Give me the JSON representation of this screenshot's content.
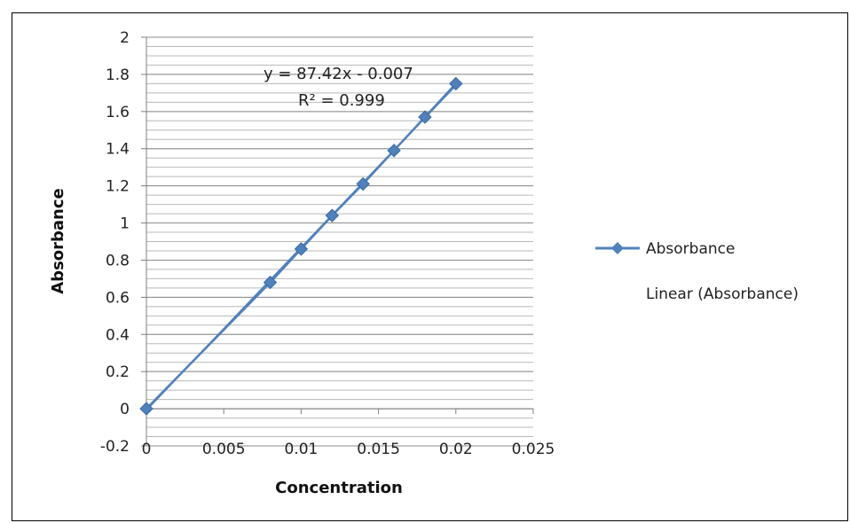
{
  "chart_data": {
    "type": "scatter",
    "title": "",
    "xlabel": "Concentration",
    "ylabel": "Absorbance",
    "xlim": [
      0,
      0.025
    ],
    "ylim": [
      -0.2,
      2
    ],
    "x_ticks": [
      0,
      0.005,
      0.01,
      0.015,
      0.02,
      0.025
    ],
    "x_tick_labels": [
      "0",
      "0.005",
      "0.01",
      "0.015",
      "0.02",
      "0.025"
    ],
    "y_ticks": [
      -0.2,
      0,
      0.2,
      0.4,
      0.6,
      0.8,
      1,
      1.2,
      1.4,
      1.6,
      1.8,
      2
    ],
    "y_tick_labels": [
      "-0.2",
      "0",
      "0.2",
      "0.4",
      "0.6",
      "0.8",
      "1",
      "1.2",
      "1.4",
      "1.6",
      "1.8",
      "2"
    ],
    "y_minor_step": 0.05,
    "grid": true,
    "legend_position": "right",
    "series": [
      {
        "name": "Absorbance",
        "marker": "diamond",
        "color": "#4F81BD",
        "x": [
          0,
          0.008,
          0.01,
          0.012,
          0.014,
          0.016,
          0.018,
          0.02
        ],
        "y": [
          0,
          0.68,
          0.86,
          1.04,
          1.21,
          1.39,
          1.57,
          1.75
        ]
      }
    ],
    "trendline": {
      "name": "Linear (Absorbance)",
      "color": "#4F81BD",
      "slope": 87.42,
      "intercept": -0.007,
      "x_range": [
        0,
        0.02
      ]
    },
    "annotations": {
      "equation": "y = 87.42x - 0.007",
      "r_squared": "R² = 0.999"
    }
  }
}
